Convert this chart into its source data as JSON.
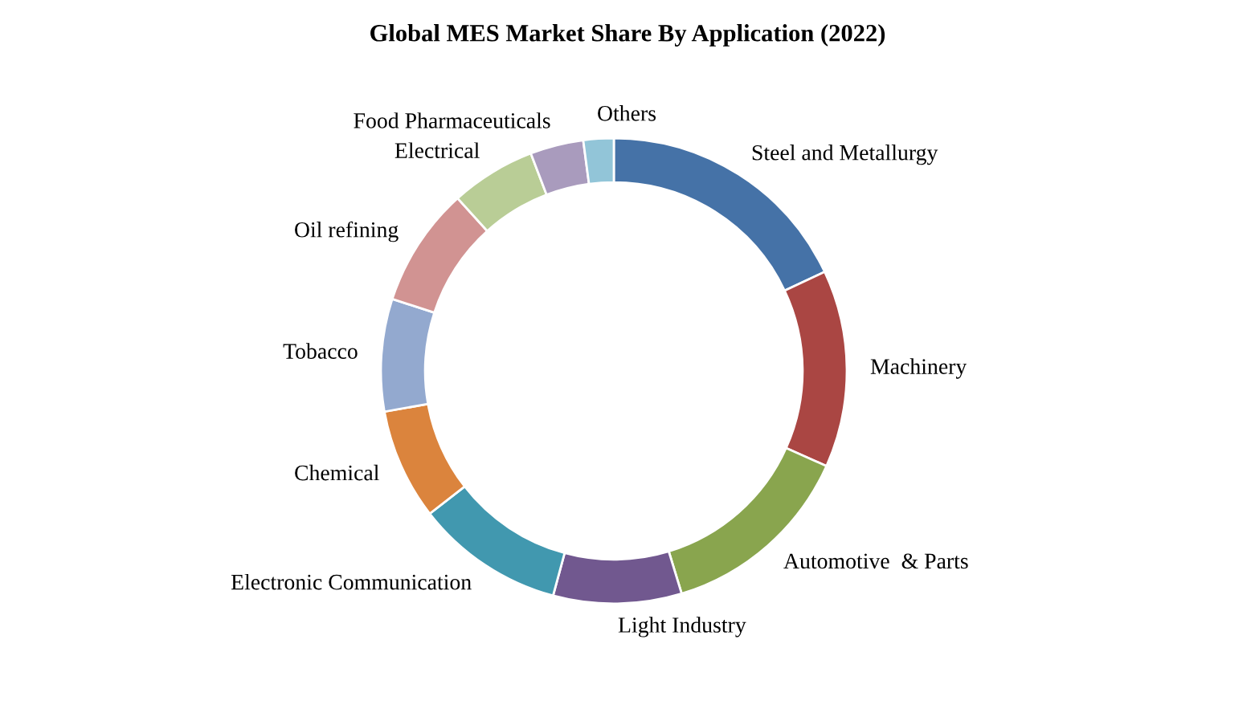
{
  "chart_data": {
    "type": "donut",
    "title": "Global MES Market Share By Application (2022)",
    "categories": [
      "Steel and Metallurgy",
      "Machinery",
      "Automotive  & Parts",
      "Light Industry",
      "Electronic Communication",
      "Chemical",
      "Tobacco",
      "Oil refining",
      "Electrical",
      "Food Pharmaceuticals",
      "Others"
    ],
    "values": [
      18.0,
      13.7,
      13.6,
      8.9,
      10.3,
      7.7,
      7.8,
      8.3,
      5.9,
      3.7,
      2.1
    ],
    "colors": [
      "#4572a7",
      "#aa4643",
      "#89a54e",
      "#71588f",
      "#4198af",
      "#db843d",
      "#93a9cf",
      "#d19392",
      "#b9cd96",
      "#a99bbd",
      "#92c5d8"
    ],
    "legend": false
  }
}
